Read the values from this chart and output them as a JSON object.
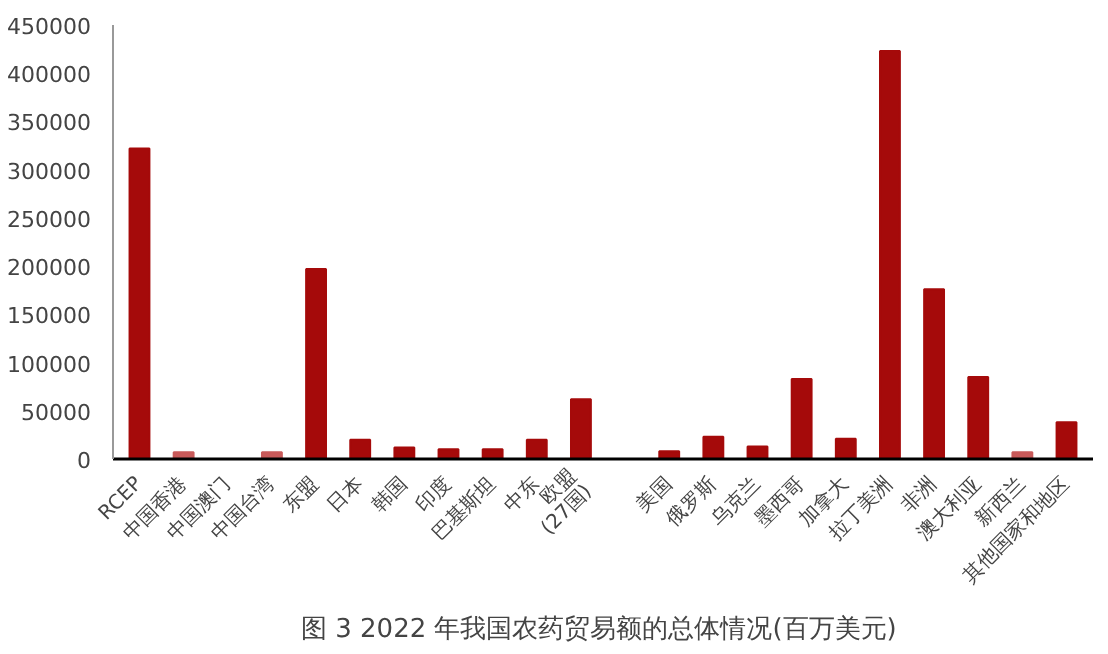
{
  "chart_data": {
    "type": "bar",
    "title": "图 3  2022 年我国农药贸易额的总体情况(百万美元)",
    "categories": [
      "RCEP",
      "中国香港",
      "中国澳门",
      "中国台湾",
      "东盟",
      "日本",
      "韩国",
      "印度",
      "巴基斯坦",
      "中东",
      "欧盟\n(27国)",
      null,
      "美国",
      "俄罗斯",
      "乌克兰",
      "墨西哥",
      "加拿大",
      "拉丁美洲",
      "非洲",
      "澳大利亚",
      "新西兰",
      "其他国家和地区"
    ],
    "values": [
      322000,
      7000,
      0,
      7000,
      197000,
      20000,
      12000,
      10000,
      10000,
      20000,
      62000,
      null,
      8000,
      23000,
      13000,
      83000,
      21000,
      423000,
      176000,
      85000,
      7000,
      38000
    ],
    "colors": [
      "#a50a0a",
      "#c85a5a",
      "#a50a0a",
      "#c85a5a",
      "#a50a0a",
      "#a50a0a",
      "#a50a0a",
      "#a50a0a",
      "#a50a0a",
      "#a50a0a",
      "#a50a0a",
      "#a50a0a",
      "#a50a0a",
      "#a50a0a",
      "#a50a0a",
      "#a50a0a",
      "#a50a0a",
      "#a50a0a",
      "#a50a0a",
      "#a50a0a",
      "#c85a5a",
      "#a50a0a"
    ],
    "ylim": [
      0,
      450000
    ],
    "yticks": [
      0,
      50000,
      100000,
      150000,
      200000,
      250000,
      300000,
      350000,
      400000,
      450000
    ],
    "grid": false
  }
}
